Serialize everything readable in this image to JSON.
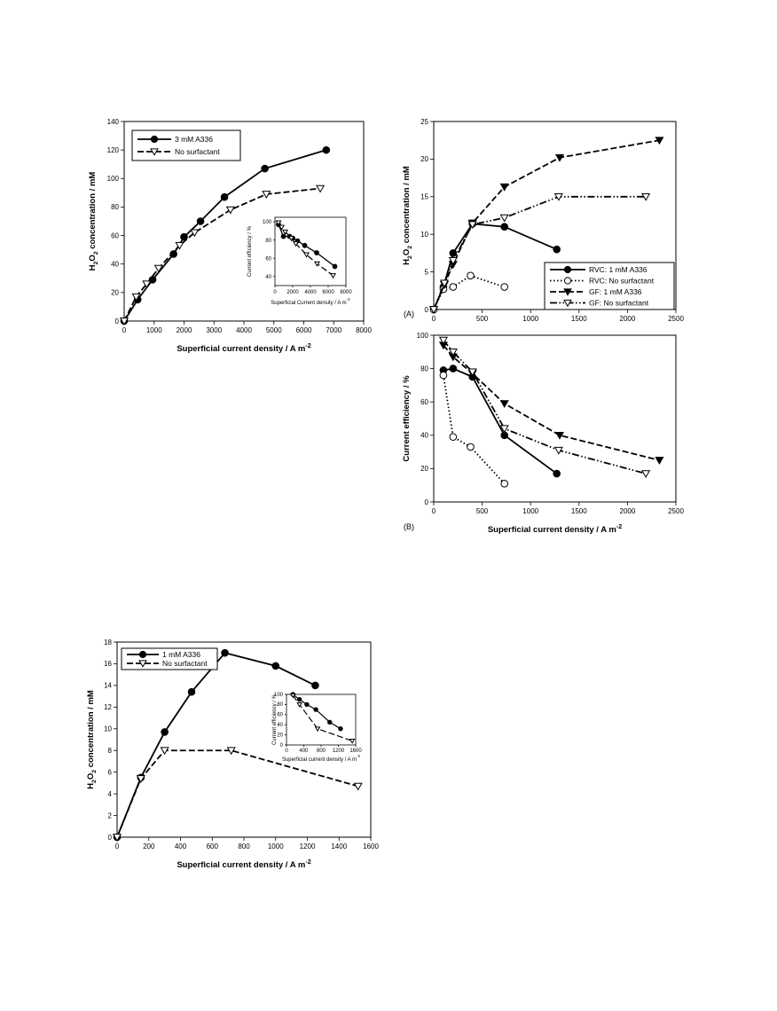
{
  "chart_data": [
    {
      "id": "c1",
      "type": "line",
      "xlabel": "Superficial current density / A m",
      "xlabel_sup": "-2",
      "ylabel_parts": [
        "H",
        "2",
        "O",
        "2",
        " concentration  / mM"
      ],
      "xlim": [
        0,
        8000
      ],
      "ylim": [
        0,
        140
      ],
      "xticks": [
        0,
        1000,
        2000,
        3000,
        4000,
        5000,
        6000,
        7000,
        8000
      ],
      "yticks": [
        0,
        20,
        40,
        60,
        80,
        100,
        120,
        140
      ],
      "legend": "top-left",
      "series": [
        {
          "name": "3 mM A336",
          "marker": "filled-circle",
          "dash": "solid",
          "x": [
            0,
            450,
            950,
            1650,
            2000,
            2550,
            3350,
            4700,
            6750
          ],
          "y": [
            0,
            15,
            29,
            47,
            59,
            70,
            87,
            107,
            120
          ]
        },
        {
          "name": "No surfactant",
          "marker": "open-triangle-down",
          "dash": "dashed",
          "x": [
            0,
            400,
            750,
            1150,
            1850,
            2350,
            3550,
            4750,
            6550
          ],
          "y": [
            0,
            17,
            26,
            37,
            53,
            62,
            78,
            89,
            93
          ]
        }
      ],
      "inset": {
        "xlabel": "Superficial Current density / A m",
        "xlabel_sup": "-2",
        "ylabel": "Current efficiency / %",
        "xlim": [
          0,
          8000
        ],
        "ylim": [
          30,
          105
        ],
        "xticks": [
          0,
          2000,
          4000,
          6000,
          8000
        ],
        "yticks": [
          40,
          60,
          80,
          100
        ],
        "series": [
          {
            "name": "3 mM A336",
            "marker": "filled-circle",
            "dash": "solid",
            "x": [
              400,
              950,
              1650,
              2000,
              2550,
              3350,
              4700,
              6750
            ],
            "y": [
              97,
              84,
              84,
              82,
              79,
              74,
              66,
              51
            ]
          },
          {
            "name": "No surfactant",
            "marker": "open-triangle-down",
            "dash": "dashed",
            "x": [
              400,
              750,
              1150,
              1850,
              2350,
              3550,
              4750,
              6550
            ],
            "y": [
              99,
              94,
              89,
              82,
              76,
              64,
              54,
              41
            ]
          }
        ]
      }
    },
    {
      "id": "c2",
      "type": "line",
      "panel_label": "(A)",
      "ylabel_parts": [
        "H",
        "2",
        "O",
        "2",
        " concentration / mM"
      ],
      "xlim": [
        0,
        2500
      ],
      "ylim": [
        0,
        25
      ],
      "xticks": [
        0,
        500,
        1000,
        1500,
        2000,
        2500
      ],
      "yticks": [
        0,
        5,
        10,
        15,
        20,
        25
      ],
      "legend": "bottom-right",
      "series": [
        {
          "name": "RVC: 1 mM A336",
          "marker": "filled-circle",
          "dash": "solid",
          "x": [
            0,
            100,
            200,
            400,
            730,
            1270
          ],
          "y": [
            0,
            3,
            7.5,
            11.4,
            11,
            8
          ]
        },
        {
          "name": "RVC: No surfactant",
          "marker": "open-circle",
          "dash": "dotted",
          "x": [
            0,
            100,
            200,
            380,
            730
          ],
          "y": [
            0,
            2.7,
            3,
            4.5,
            3
          ]
        },
        {
          "name": "GF: 1 mM A336",
          "marker": "filled-triangle-down",
          "dash": "dashed",
          "x": [
            0,
            110,
            200,
            400,
            730,
            1300,
            2330
          ],
          "y": [
            0,
            3.3,
            6,
            11.5,
            16.3,
            20.2,
            22.5
          ]
        },
        {
          "name": "GF: No surfactant",
          "marker": "open-triangle-down",
          "dash": "dashdot",
          "x": [
            0,
            110,
            200,
            400,
            730,
            1290,
            2190
          ],
          "y": [
            0,
            3.5,
            6.5,
            11.3,
            12.2,
            15,
            15
          ]
        }
      ]
    },
    {
      "id": "c3",
      "type": "line",
      "panel_label": "(B)",
      "xlabel": "Superficial current density / A m",
      "xlabel_sup": "-2",
      "ylabel": "Current efficiency / %",
      "xlim": [
        0,
        2500
      ],
      "ylim": [
        0,
        100
      ],
      "xticks": [
        0,
        500,
        1000,
        1500,
        2000,
        2500
      ],
      "yticks": [
        0,
        20,
        40,
        60,
        80,
        100
      ],
      "series": [
        {
          "name": "RVC: 1 mM A336",
          "marker": "filled-circle",
          "dash": "solid",
          "x": [
            100,
            200,
            400,
            730,
            1270
          ],
          "y": [
            79,
            80,
            75,
            40,
            17
          ]
        },
        {
          "name": "RVC: No surfactant",
          "marker": "open-circle",
          "dash": "dotted",
          "x": [
            100,
            200,
            380,
            730
          ],
          "y": [
            76,
            39,
            33,
            11
          ]
        },
        {
          "name": "GF: 1 mM A336",
          "marker": "filled-triangle-down",
          "dash": "dashed",
          "x": [
            100,
            200,
            400,
            730,
            1300,
            2330
          ],
          "y": [
            94,
            87,
            77,
            59,
            40,
            25
          ]
        },
        {
          "name": "GF: No surfactant",
          "marker": "open-triangle-down",
          "dash": "dashdot",
          "x": [
            100,
            200,
            400,
            730,
            1290,
            2190
          ],
          "y": [
            97,
            90,
            78,
            44,
            31,
            17
          ]
        }
      ]
    },
    {
      "id": "c4",
      "type": "line",
      "xlabel": "Superficial current density / A m",
      "xlabel_sup": "-2",
      "ylabel_parts": [
        "H",
        "2",
        "O",
        "2",
        " concentration / mM"
      ],
      "xlim": [
        0,
        1600
      ],
      "ylim": [
        0,
        18
      ],
      "xticks": [
        0,
        200,
        400,
        600,
        800,
        1000,
        1200,
        1400,
        1600
      ],
      "yticks": [
        0,
        2,
        4,
        6,
        8,
        10,
        12,
        14,
        16,
        18
      ],
      "legend": "top-left",
      "series": [
        {
          "name": "1 mM A336",
          "marker": "filled-circle",
          "dash": "solid",
          "x": [
            0,
            150,
            300,
            470,
            680,
            1000,
            1250
          ],
          "y": [
            0,
            5.5,
            9.7,
            13.4,
            17,
            15.8,
            14
          ]
        },
        {
          "name": "No surfactant",
          "marker": "open-triangle-down",
          "dash": "dashed",
          "x": [
            0,
            150,
            300,
            720,
            1520
          ],
          "y": [
            0,
            5.4,
            8,
            8,
            4.7
          ]
        }
      ],
      "inset": {
        "xlabel": "Superficial current density / A m",
        "xlabel_sup": "-2",
        "ylabel": "Current efficiency / %",
        "xlim": [
          0,
          1600
        ],
        "ylim": [
          0,
          100
        ],
        "xticks": [
          0,
          400,
          800,
          1200,
          1600
        ],
        "yticks": [
          0,
          20,
          40,
          60,
          80,
          100
        ],
        "series": [
          {
            "name": "1 mM A336",
            "marker": "filled-circle",
            "dash": "solid",
            "x": [
              150,
              300,
              470,
              680,
              1000,
              1250
            ],
            "y": [
              100,
              90,
              80,
              70,
              45,
              32
            ]
          },
          {
            "name": "No surfactant",
            "marker": "open-triangle-down",
            "dash": "dashed",
            "x": [
              150,
              300,
              720,
              1520
            ],
            "y": [
              98,
              80,
              32,
              8
            ]
          }
        ]
      }
    }
  ]
}
